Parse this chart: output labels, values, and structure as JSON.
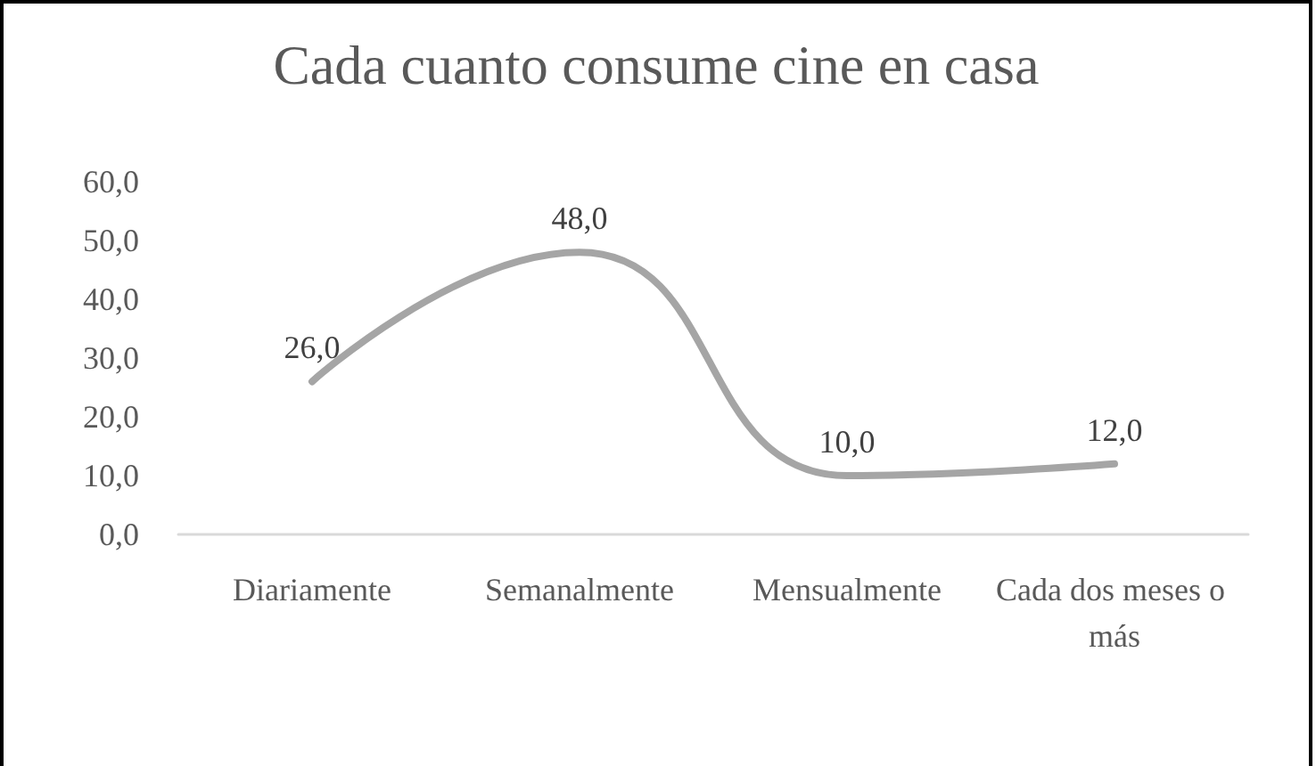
{
  "chart_data": {
    "type": "line",
    "title": "Cada cuanto consume cine en casa",
    "categories": [
      "Diariamente",
      "Semanalmente",
      "Mensualmente",
      "Cada dos meses o más"
    ],
    "series": [
      {
        "color": "#a5a5a5",
        "values": [
          26,
          48,
          10,
          12
        ],
        "value_labels": [
          "26,0",
          "48,0",
          "10,0",
          "12,0"
        ]
      }
    ],
    "ylim": [
      0,
      60
    ],
    "yticks": [
      {
        "value": 0,
        "label": "0,0"
      },
      {
        "value": 10,
        "label": "10,0"
      },
      {
        "value": 20,
        "label": "20,0"
      },
      {
        "value": 30,
        "label": "30,0"
      },
      {
        "value": 40,
        "label": "40,0"
      },
      {
        "value": 50,
        "label": "50,0"
      },
      {
        "value": 60,
        "label": "60,0"
      }
    ],
    "grid": false,
    "marker": "none",
    "line_style": "solid"
  }
}
